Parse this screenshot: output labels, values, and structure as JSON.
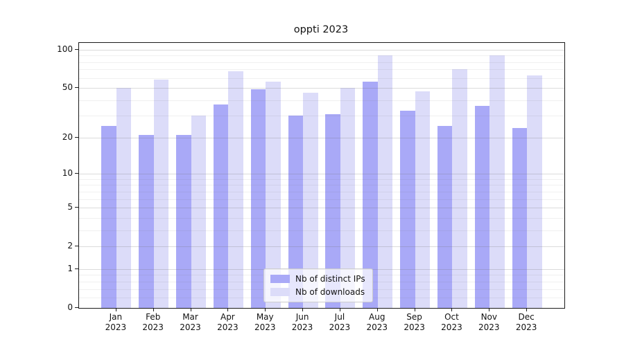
{
  "title": "oppti 2023",
  "legend": {
    "items": [
      {
        "label": "Nb of distinct IPs",
        "color": "#a9a9f7"
      },
      {
        "label": "Nb of downloads",
        "color": "#dcdcf9"
      }
    ]
  },
  "chart_data": {
    "type": "bar",
    "title": "oppti 2023",
    "categories": [
      "Jan 2023",
      "Feb 2023",
      "Mar 2023",
      "Apr 2023",
      "May 2023",
      "Jun 2023",
      "Jul 2023",
      "Aug 2023",
      "Sep 2023",
      "Oct 2023",
      "Nov 2023",
      "Dec 2023"
    ],
    "category_month": [
      "Jan",
      "Feb",
      "Mar",
      "Apr",
      "May",
      "Jun",
      "Jul",
      "Aug",
      "Sep",
      "Oct",
      "Nov",
      "Dec"
    ],
    "category_year": "2023",
    "series": [
      {
        "name": "Nb of distinct IPs",
        "color": "#a9a9f7",
        "values": [
          25,
          21,
          21,
          37,
          49,
          30,
          31,
          56,
          33,
          25,
          36,
          24
        ]
      },
      {
        "name": "Nb of downloads",
        "color": "#dcdcf9",
        "values": [
          50,
          58,
          30,
          68,
          56,
          46,
          50,
          90,
          47,
          70,
          90,
          63
        ]
      }
    ],
    "xlabel": "",
    "ylabel": "",
    "yscale": "log1p",
    "ylim": [
      0,
      112
    ],
    "yticks": [
      0,
      1,
      2,
      5,
      10,
      20,
      50,
      100
    ],
    "minor_yticks": [
      0.2,
      0.4,
      0.6,
      0.8,
      3,
      4,
      6,
      7,
      8,
      9,
      30,
      40,
      60,
      70,
      80,
      90
    ],
    "grid": true,
    "legend_position": "lower center"
  }
}
